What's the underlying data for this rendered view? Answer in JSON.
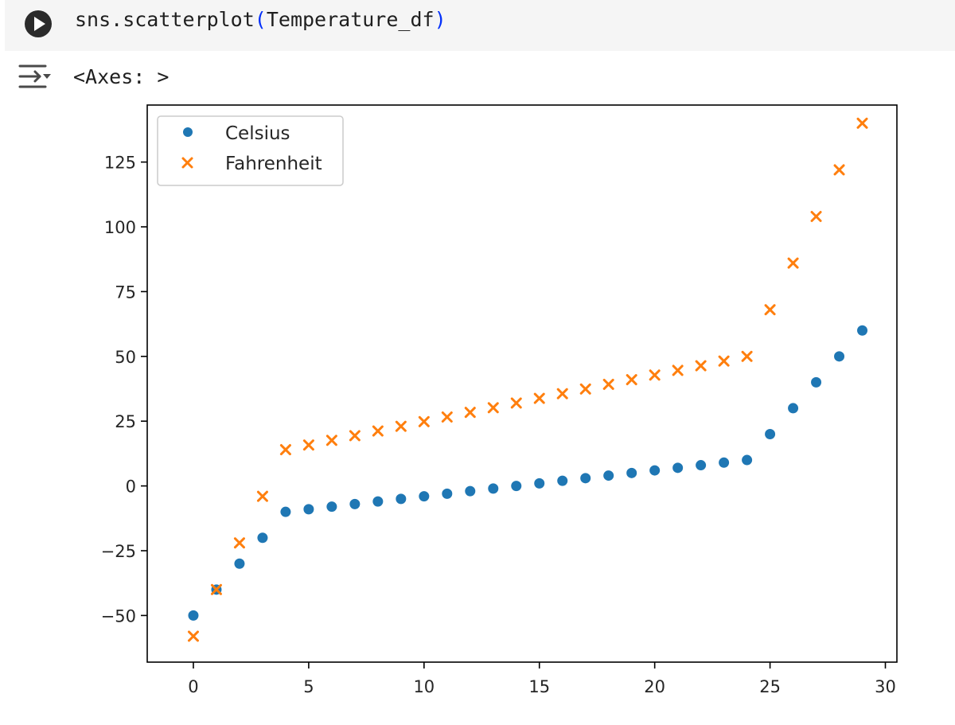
{
  "cell": {
    "code_fn": "sns.scatterplot",
    "code_open": "(",
    "code_arg": "Temperature_df",
    "code_close": ")",
    "run_icon": "play-circle-icon"
  },
  "output": {
    "toggle_icon": "output-collapse-icon",
    "text": "<Axes: >"
  },
  "chart_data": {
    "type": "scatter",
    "title": "",
    "xlabel": "",
    "ylabel": "",
    "xlim": [
      -2,
      30.5
    ],
    "ylim": [
      -68,
      147
    ],
    "xticks": [
      0,
      5,
      10,
      15,
      20,
      25,
      30
    ],
    "xtick_labels": [
      "0",
      "5",
      "10",
      "15",
      "20",
      "25",
      "30"
    ],
    "yticks": [
      -50,
      -25,
      0,
      25,
      50,
      75,
      100,
      125
    ],
    "ytick_labels": [
      "−50",
      "−25",
      "0",
      "25",
      "50",
      "75",
      "100",
      "125"
    ],
    "legend": "upper-left",
    "grid": false,
    "series": [
      {
        "name": "Celsius",
        "marker": "circle",
        "color": "#1f77b4",
        "x": [
          0,
          1,
          2,
          3,
          4,
          5,
          6,
          7,
          8,
          9,
          10,
          11,
          12,
          13,
          14,
          15,
          16,
          17,
          18,
          19,
          20,
          21,
          22,
          23,
          24,
          25,
          26,
          27,
          28,
          29
        ],
        "y": [
          -50,
          -40,
          -30,
          -20,
          -10,
          -9,
          -8,
          -7,
          -6,
          -5,
          -4,
          -3,
          -2,
          -1,
          0,
          1,
          2,
          3,
          4,
          5,
          6,
          7,
          8,
          9,
          10,
          20,
          30,
          40,
          50,
          60
        ]
      },
      {
        "name": "Fahrenheit",
        "marker": "x",
        "color": "#ff7f0e",
        "x": [
          0,
          1,
          2,
          3,
          4,
          5,
          6,
          7,
          8,
          9,
          10,
          11,
          12,
          13,
          14,
          15,
          16,
          17,
          18,
          19,
          20,
          21,
          22,
          23,
          24,
          25,
          26,
          27,
          28,
          29
        ],
        "y": [
          -58,
          -40,
          -22,
          -4,
          14,
          15.8,
          17.6,
          19.4,
          21.2,
          23,
          24.8,
          26.6,
          28.4,
          30.2,
          32,
          33.8,
          35.6,
          37.4,
          39.2,
          41,
          42.8,
          44.6,
          46.4,
          48.2,
          50,
          68,
          86,
          104,
          122,
          140
        ]
      }
    ]
  }
}
